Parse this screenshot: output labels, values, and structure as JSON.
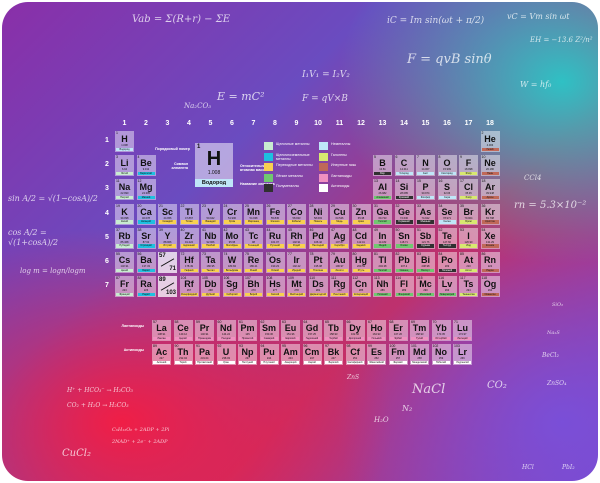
{
  "group_headers": [
    "1",
    "2",
    "3",
    "4",
    "5",
    "6",
    "7",
    "8",
    "9",
    "10",
    "11",
    "12",
    "13",
    "14",
    "15",
    "16",
    "17",
    "18"
  ],
  "period_labels": [
    "1",
    "2",
    "3",
    "4",
    "5",
    "6",
    "7"
  ],
  "key": {
    "number": "1",
    "symbol": "H",
    "mass": "1.008",
    "name": "Водород",
    "label_number": "Порядковый номер",
    "label_symbol": "Символ элемента",
    "label_mass": "Относительная атомная масса",
    "label_name": "Название элемента"
  },
  "legend": [
    {
      "label": "Щелочные металлы",
      "color": "#c8ecd0"
    },
    {
      "label": "Щелочноземельные металлы",
      "color": "#1ec0e0"
    },
    {
      "label": "Переходные металлы",
      "color": "#f8d050"
    },
    {
      "label": "Лёгкие металлы",
      "color": "#70c870"
    },
    {
      "label": "Полуметаллы",
      "color": "#303030"
    },
    {
      "label": "Неметаллы",
      "color": "#bfe6f8"
    },
    {
      "label": "Галогены",
      "color": "#d8e870"
    },
    {
      "label": "Инертные газы",
      "color": "#c06858"
    },
    {
      "label": "Лантаноиды",
      "color": "#f090c0"
    },
    {
      "label": "Актиноиды",
      "color": "#ffffff"
    }
  ],
  "series_labels": {
    "lanthanides": "Лантаноиды",
    "actinides": "Актиноиды"
  },
  "placeholders": [
    {
      "top": "57",
      "bottom": "71"
    },
    {
      "top": "89",
      "bottom": "103"
    }
  ],
  "elements": [
    [
      1,
      "H",
      "Водород",
      "1.008",
      5
    ],
    [
      2,
      "He",
      "Гелий",
      "4.003",
      7
    ],
    [
      3,
      "Li",
      "Литий",
      "6.94",
      0
    ],
    [
      4,
      "Be",
      "Бериллий",
      "9.012",
      1
    ],
    [
      5,
      "B",
      "Бор",
      "10.81",
      4
    ],
    [
      6,
      "C",
      "Углерод",
      "12.011",
      5
    ],
    [
      7,
      "N",
      "Азот",
      "14.007",
      5
    ],
    [
      8,
      "O",
      "Кислород",
      "15.999",
      5
    ],
    [
      9,
      "F",
      "Фтор",
      "18.998",
      6
    ],
    [
      10,
      "Ne",
      "Неон",
      "20.180",
      7
    ],
    [
      11,
      "Na",
      "Натрий",
      "22.990",
      0
    ],
    [
      12,
      "Mg",
      "Магний",
      "24.305",
      1
    ],
    [
      13,
      "Al",
      "Алюминий",
      "26.982",
      3
    ],
    [
      14,
      "Si",
      "Кремний",
      "28.085",
      4
    ],
    [
      15,
      "P",
      "Фосфор",
      "30.974",
      5
    ],
    [
      16,
      "S",
      "Сера",
      "32.06",
      5
    ],
    [
      17,
      "Cl",
      "Хлор",
      "35.45",
      6
    ],
    [
      18,
      "Ar",
      "Аргон",
      "39.948",
      7
    ],
    [
      19,
      "K",
      "Калий",
      "39.098",
      0
    ],
    [
      20,
      "Ca",
      "Кальций",
      "40.078",
      1
    ],
    [
      21,
      "Sc",
      "Скандий",
      "44.956",
      2
    ],
    [
      22,
      "Ti",
      "Титан",
      "47.867",
      2
    ],
    [
      23,
      "V",
      "Ванадий",
      "50.942",
      2
    ],
    [
      24,
      "Cr",
      "Хром",
      "51.996",
      2
    ],
    [
      25,
      "Mn",
      "Марганец",
      "54.938",
      2
    ],
    [
      26,
      "Fe",
      "Железо",
      "55.845",
      2
    ],
    [
      27,
      "Co",
      "Кобальт",
      "58.933",
      2
    ],
    [
      28,
      "Ni",
      "Никель",
      "58.693",
      2
    ],
    [
      29,
      "Cu",
      "Медь",
      "63.546",
      2
    ],
    [
      30,
      "Zn",
      "Цинк",
      "65.38",
      2
    ],
    [
      31,
      "Ga",
      "Галлий",
      "69.723",
      3
    ],
    [
      32,
      "Ge",
      "Германий",
      "72.630",
      4
    ],
    [
      33,
      "As",
      "Мышьяк",
      "74.922",
      4
    ],
    [
      34,
      "Se",
      "Селен",
      "78.971",
      5
    ],
    [
      35,
      "Br",
      "Бром",
      "79.904",
      6
    ],
    [
      36,
      "Kr",
      "Криптон",
      "83.798",
      7
    ],
    [
      37,
      "Rb",
      "Рубидий",
      "85.468",
      0
    ],
    [
      38,
      "Sr",
      "Стронций",
      "87.62",
      1
    ],
    [
      39,
      "Y",
      "Иттрий",
      "88.906",
      2
    ],
    [
      40,
      "Zr",
      "Цирконий",
      "91.224",
      2
    ],
    [
      41,
      "Nb",
      "Ниобий",
      "92.906",
      2
    ],
    [
      42,
      "Mo",
      "Молибден",
      "95.95",
      2
    ],
    [
      43,
      "Tc",
      "Технеций",
      "98",
      2
    ],
    [
      44,
      "Ru",
      "Рутений",
      "101.07",
      2
    ],
    [
      45,
      "Rh",
      "Родий",
      "102.91",
      2
    ],
    [
      46,
      "Pd",
      "Палладий",
      "106.42",
      2
    ],
    [
      47,
      "Ag",
      "Серебро",
      "107.87",
      2
    ],
    [
      48,
      "Cd",
      "Кадмий",
      "112.41",
      2
    ],
    [
      49,
      "In",
      "Индий",
      "114.82",
      3
    ],
    [
      50,
      "Sn",
      "Олово",
      "118.71",
      3
    ],
    [
      51,
      "Sb",
      "Сурьма",
      "121.76",
      4
    ],
    [
      52,
      "Te",
      "Теллур",
      "127.60",
      4
    ],
    [
      53,
      "I",
      "Иод",
      "126.90",
      6
    ],
    [
      54,
      "Xe",
      "Ксенон",
      "131.29",
      7
    ],
    [
      55,
      "Cs",
      "Цезий",
      "132.91",
      0
    ],
    [
      56,
      "Ba",
      "Барий",
      "137.33",
      1
    ],
    [
      72,
      "Hf",
      "Гафний",
      "178.49",
      2
    ],
    [
      73,
      "Ta",
      "Тантал",
      "180.95",
      2
    ],
    [
      74,
      "W",
      "Вольфрам",
      "183.84",
      2
    ],
    [
      75,
      "Re",
      "Рений",
      "186.21",
      2
    ],
    [
      76,
      "Os",
      "Осмий",
      "190.23",
      2
    ],
    [
      77,
      "Ir",
      "Иридий",
      "192.22",
      2
    ],
    [
      78,
      "Pt",
      "Платина",
      "195.08",
      2
    ],
    [
      79,
      "Au",
      "Золото",
      "196.97",
      2
    ],
    [
      80,
      "Hg",
      "Ртуть",
      "200.59",
      2
    ],
    [
      81,
      "Tl",
      "Таллий",
      "204.38",
      3
    ],
    [
      82,
      "Pb",
      "Свинец",
      "207.2",
      3
    ],
    [
      83,
      "Bi",
      "Висмут",
      "208.98",
      3
    ],
    [
      84,
      "Po",
      "Полоний",
      "209",
      4
    ],
    [
      85,
      "At",
      "Астат",
      "210",
      6
    ],
    [
      86,
      "Rn",
      "Радон",
      "222",
      7
    ],
    [
      87,
      "Fr",
      "Франций",
      "223",
      0
    ],
    [
      88,
      "Ra",
      "Радий",
      "226",
      1
    ],
    [
      104,
      "Rf",
      "Резерфордий",
      "267",
      2
    ],
    [
      105,
      "Db",
      "Дубний",
      "268",
      2
    ],
    [
      106,
      "Sg",
      "Сиборгий",
      "269",
      2
    ],
    [
      107,
      "Bh",
      "Борий",
      "270",
      2
    ],
    [
      108,
      "Hs",
      "Хассий",
      "277",
      2
    ],
    [
      109,
      "Mt",
      "Мейтнерий",
      "278",
      2
    ],
    [
      110,
      "Ds",
      "Дармштадтий",
      "281",
      2
    ],
    [
      111,
      "Rg",
      "Рентгений",
      "282",
      2
    ],
    [
      112,
      "Cn",
      "Коперниций",
      "285",
      2
    ],
    [
      113,
      "Nh",
      "Нихоний",
      "286",
      3
    ],
    [
      114,
      "Fl",
      "Флеровий",
      "289",
      3
    ],
    [
      115,
      "Mc",
      "Московий",
      "290",
      3
    ],
    [
      116,
      "Lv",
      "Ливерморий",
      "293",
      3
    ],
    [
      117,
      "Ts",
      "Теннессин",
      "294",
      6
    ],
    [
      118,
      "Og",
      "Оганесон",
      "294",
      7
    ]
  ],
  "lanthanides": [
    [
      57,
      "La",
      "Лантан",
      "138.91",
      8
    ],
    [
      58,
      "Ce",
      "Церий",
      "140.12",
      8
    ],
    [
      59,
      "Pr",
      "Празеодим",
      "140.91",
      8
    ],
    [
      60,
      "Nd",
      "Неодим",
      "144.24",
      8
    ],
    [
      61,
      "Pm",
      "Прометий",
      "145",
      8
    ],
    [
      62,
      "Sm",
      "Самарий",
      "150.36",
      8
    ],
    [
      63,
      "Eu",
      "Европий",
      "151.96",
      8
    ],
    [
      64,
      "Gd",
      "Гадолиний",
      "157.25",
      8
    ],
    [
      65,
      "Tb",
      "Тербий",
      "158.93",
      8
    ],
    [
      66,
      "Dy",
      "Диспрозий",
      "162.50",
      8
    ],
    [
      67,
      "Ho",
      "Гольмий",
      "164.93",
      8
    ],
    [
      68,
      "Er",
      "Эрбий",
      "167.26",
      8
    ],
    [
      69,
      "Tm",
      "Тулий",
      "168.93",
      8
    ],
    [
      70,
      "Yb",
      "Иттербий",
      "173.05",
      8
    ],
    [
      71,
      "Lu",
      "Лютеций",
      "174.97",
      8
    ]
  ],
  "actinides": [
    [
      89,
      "Ac",
      "Актиний",
      "227",
      9
    ],
    [
      90,
      "Th",
      "Торий",
      "232.04",
      9
    ],
    [
      91,
      "Pa",
      "Протактиний",
      "231.04",
      9
    ],
    [
      92,
      "U",
      "Уран",
      "238.03",
      9
    ],
    [
      93,
      "Np",
      "Нептуний",
      "237",
      9
    ],
    [
      94,
      "Pu",
      "Плутоний",
      "244",
      9
    ],
    [
      95,
      "Am",
      "Америций",
      "243",
      9
    ],
    [
      96,
      "Cm",
      "Кюрий",
      "247",
      9
    ],
    [
      97,
      "Bk",
      "Берклий",
      "247",
      9
    ],
    [
      98,
      "Cf",
      "Калифорний",
      "251",
      9
    ],
    [
      99,
      "Es",
      "Эйнштейний",
      "252",
      9
    ],
    [
      100,
      "Fm",
      "Фермий",
      "257",
      9
    ],
    [
      101,
      "Md",
      "Менделевий",
      "258",
      9
    ],
    [
      102,
      "No",
      "Нобелий",
      "259",
      9
    ],
    [
      103,
      "Lr",
      "Лоуренсий",
      "266",
      9
    ]
  ],
  "doodles": [
    "Vab = Σ(R+r) − ΣE",
    "E = mC²",
    "I₁V₁ = I₂V₂",
    "F = qvB sinθ",
    "F = qV×B",
    "iC = Im sin(ωt + π/2)",
    "vC = Vm sin ωt",
    "W = hf₀",
    "Na₂CO₃",
    "EH = −13.6 Z²/n²",
    "rn = 5.3×10⁻²",
    "CCl4",
    "sin A/2 = √(1−cosA)/2",
    "cos A/2 = √(1+cosA)/2",
    "log m = logn/logm",
    "NaCl",
    "CO₂",
    "N₂",
    "H₂O",
    "ZnS",
    "ZnSO₄",
    "CuCl₂",
    "HCl",
    "PbI₂",
    "SiO₂",
    "Na₂S",
    "BeCl₂",
    "H⁺ + HCO₃⁻ → H₂CO₃",
    "CO₂ + H₂O → H₂CO₃",
    "C₆H₁₂O₆ + 2ADP + 2Pi",
    "2NAD⁺ + 2e⁻ + 2ADP"
  ]
}
